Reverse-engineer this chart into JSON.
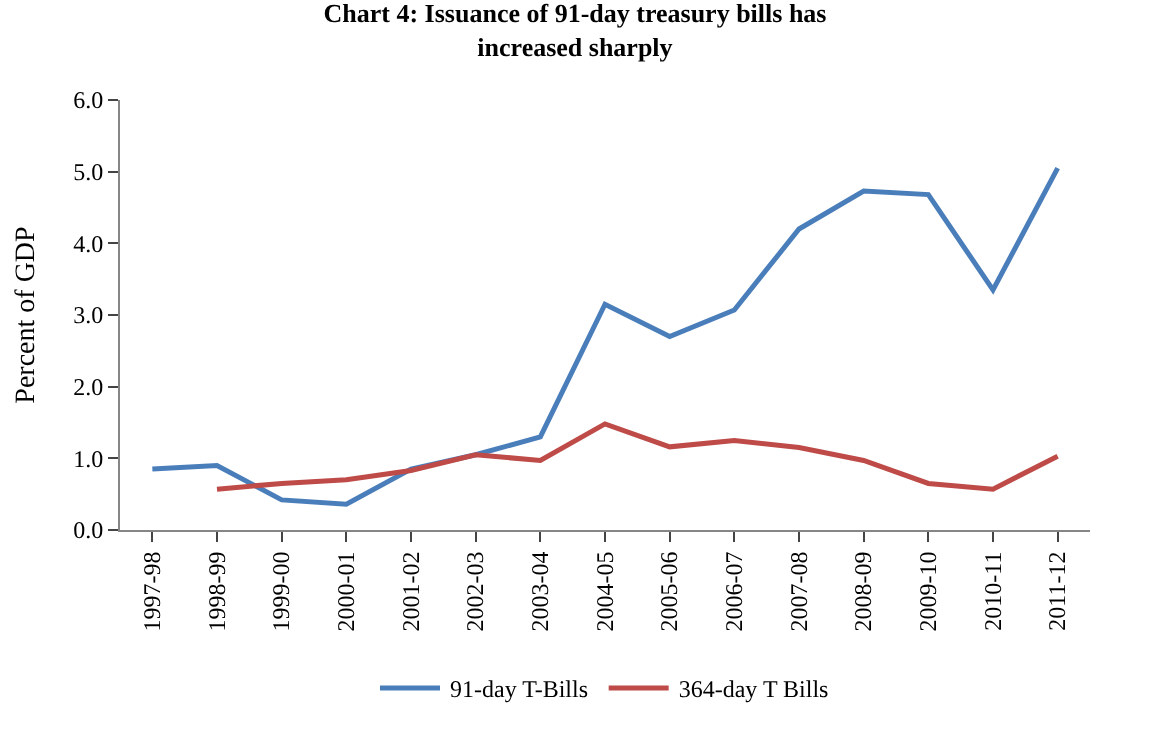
{
  "chart_data": {
    "type": "line",
    "title": "Chart 4: Issuance of 91-day treasury bills has increased sharply",
    "ylabel": "Percent of GDP",
    "categories": [
      "1997-98",
      "1998-99",
      "1999-00",
      "2000-01",
      "2001-02",
      "2002-03",
      "2003-04",
      "2004-05",
      "2005-06",
      "2006-07",
      "2007-08",
      "2008-09",
      "2009-10",
      "2010-11",
      "2011-12"
    ],
    "series": [
      {
        "name": "91-day T-Bills",
        "color": "#4a7ebb",
        "values": [
          0.85,
          0.9,
          0.42,
          0.36,
          0.85,
          1.05,
          1.3,
          3.15,
          2.7,
          3.07,
          4.2,
          4.73,
          4.68,
          3.35,
          5.05
        ]
      },
      {
        "name": "364-day T Bills",
        "color": "#be4b48",
        "values": [
          null,
          0.57,
          0.65,
          0.7,
          0.83,
          1.05,
          0.97,
          1.48,
          1.16,
          1.25,
          1.15,
          0.97,
          0.65,
          0.57,
          1.03
        ]
      }
    ],
    "ylim": [
      0,
      6
    ],
    "yticks": [
      {
        "value": 0,
        "label": "0.0"
      },
      {
        "value": 1,
        "label": "1.0"
      },
      {
        "value": 2,
        "label": "2.0"
      },
      {
        "value": 3,
        "label": "3.0"
      },
      {
        "value": 4,
        "label": "4.0"
      },
      {
        "value": 5,
        "label": "5.0"
      },
      {
        "value": 6,
        "label": "6.0"
      }
    ],
    "legend": "bottom",
    "marker": "none",
    "line_style": "solid"
  }
}
